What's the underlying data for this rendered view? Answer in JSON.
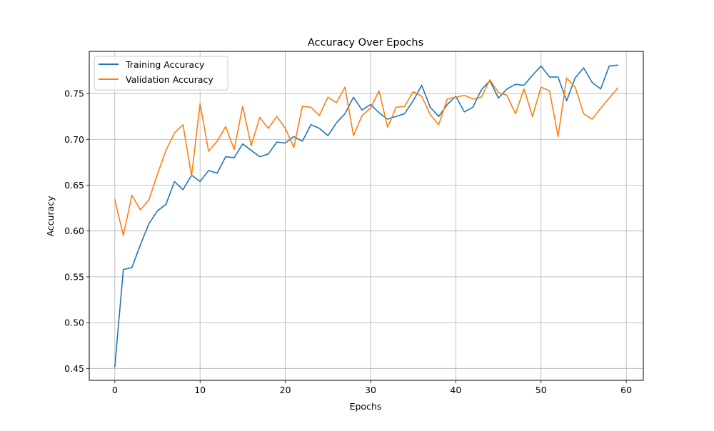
{
  "chart_data": {
    "type": "line",
    "title": "Accuracy Over Epochs",
    "xlabel": "Epochs",
    "ylabel": "Accuracy",
    "xlim": [
      -3,
      62
    ],
    "ylim": [
      0.437,
      0.796
    ],
    "xticks": [
      0,
      10,
      20,
      30,
      40,
      50,
      60
    ],
    "yticks": [
      0.45,
      0.5,
      0.55,
      0.6,
      0.65,
      0.7,
      0.75
    ],
    "ytick_labels": [
      "0.45",
      "0.50",
      "0.55",
      "0.60",
      "0.65",
      "0.70",
      "0.75"
    ],
    "grid": true,
    "legend_position": "upper left",
    "x": [
      0,
      1,
      2,
      3,
      4,
      5,
      6,
      7,
      8,
      9,
      10,
      11,
      12,
      13,
      14,
      15,
      16,
      17,
      18,
      19,
      20,
      21,
      22,
      23,
      24,
      25,
      26,
      27,
      28,
      29,
      30,
      31,
      32,
      33,
      34,
      35,
      36,
      37,
      38,
      39,
      40,
      41,
      42,
      43,
      44,
      45,
      46,
      47,
      48,
      49,
      50,
      51,
      52,
      53,
      54,
      55,
      56,
      57,
      58,
      59
    ],
    "series": [
      {
        "name": "Training Accuracy",
        "color": "#1f77b4",
        "values": [
          0.452,
          0.558,
          0.56,
          0.585,
          0.608,
          0.622,
          0.629,
          0.654,
          0.645,
          0.661,
          0.654,
          0.666,
          0.663,
          0.681,
          0.68,
          0.695,
          0.688,
          0.681,
          0.684,
          0.697,
          0.696,
          0.703,
          0.698,
          0.716,
          0.712,
          0.704,
          0.718,
          0.728,
          0.746,
          0.732,
          0.738,
          0.729,
          0.722,
          0.725,
          0.728,
          0.742,
          0.759,
          0.735,
          0.725,
          0.738,
          0.747,
          0.73,
          0.735,
          0.754,
          0.764,
          0.745,
          0.755,
          0.76,
          0.759,
          0.77,
          0.78,
          0.768,
          0.768,
          0.742,
          0.767,
          0.778,
          0.762,
          0.755,
          0.78,
          0.781
        ]
      },
      {
        "name": "Validation Accuracy",
        "color": "#ff7f0e",
        "values": [
          0.634,
          0.595,
          0.639,
          0.623,
          0.634,
          0.662,
          0.688,
          0.707,
          0.716,
          0.66,
          0.739,
          0.687,
          0.698,
          0.714,
          0.689,
          0.736,
          0.693,
          0.724,
          0.712,
          0.725,
          0.712,
          0.691,
          0.736,
          0.735,
          0.726,
          0.746,
          0.74,
          0.757,
          0.704,
          0.726,
          0.734,
          0.753,
          0.713,
          0.735,
          0.736,
          0.752,
          0.747,
          0.727,
          0.716,
          0.744,
          0.746,
          0.748,
          0.744,
          0.746,
          0.765,
          0.751,
          0.748,
          0.728,
          0.755,
          0.725,
          0.757,
          0.753,
          0.703,
          0.767,
          0.757,
          0.728,
          0.722,
          0.734,
          0.745,
          0.756
        ]
      }
    ]
  }
}
